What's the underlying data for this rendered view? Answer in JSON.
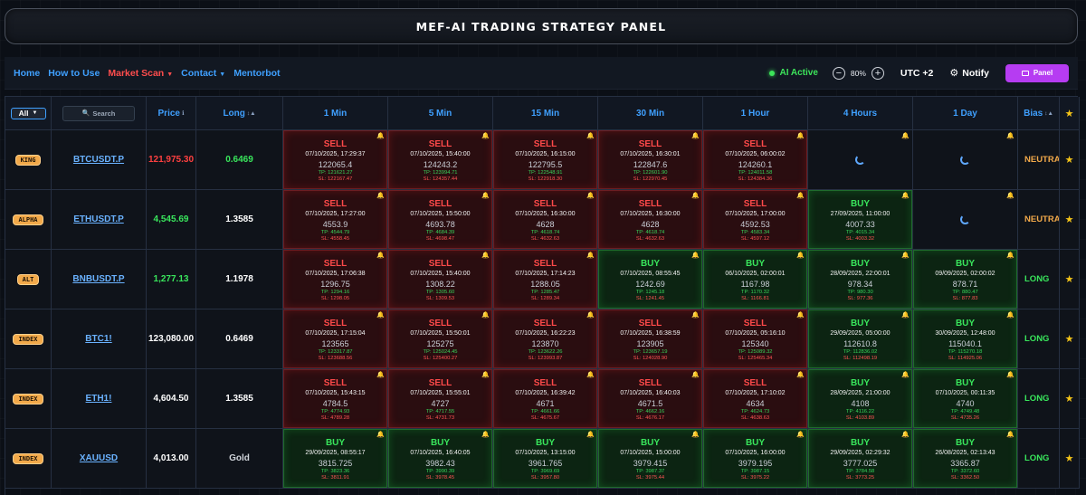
{
  "title": "MEF-AI TRADING STRATEGY PANEL",
  "nav": {
    "links": [
      {
        "label": "Home",
        "active": false,
        "dropdown": false
      },
      {
        "label": "How to Use",
        "active": false,
        "dropdown": false
      },
      {
        "label": "Market Scan",
        "active": true,
        "dropdown": true
      },
      {
        "label": "Contact",
        "active": false,
        "dropdown": true
      },
      {
        "label": "Mentorbot",
        "active": false,
        "dropdown": false
      }
    ],
    "ai_status": "AI Active",
    "zoom": "80%",
    "timezone": "UTC +2",
    "notify_label": "Notify",
    "panel_label": "Panel"
  },
  "filter": {
    "selected": "All",
    "search_placeholder": "Search"
  },
  "columns": {
    "price": "Price",
    "long": "Long",
    "timeframes": [
      "1 Min",
      "5 Min",
      "15 Min",
      "30 Min",
      "1 Hour",
      "4 Hours",
      "1 Day"
    ],
    "bias": "Bias"
  },
  "colors": {
    "sell": "#ff4a4a",
    "buy": "#39e65c",
    "neutral": "#f2a94a",
    "accent": "#3fa0ff"
  },
  "rows": [
    {
      "tag": "KING",
      "symbol": "BTCUSDT.P",
      "price": "121,975.30",
      "price_color": "#ff4040",
      "long": "0.6469",
      "long_color": "#39e65c",
      "bias": "NEUTRAL",
      "bias_color": "#f2a94a",
      "signals": [
        {
          "type": "SELL",
          "time": "07/10/2025, 17:29:37",
          "price": "122065.4",
          "tp": "TP: 121621.27",
          "sl": "SL: 122167.47"
        },
        {
          "type": "SELL",
          "time": "07/10/2025, 15:40:00",
          "price": "124243.2",
          "tp": "TP: 123994.71",
          "sl": "SL: 124357.44"
        },
        {
          "type": "SELL",
          "time": "07/10/2025, 16:15:00",
          "price": "122795.5",
          "tp": "TP: 122548.91",
          "sl": "SL: 122918.30"
        },
        {
          "type": "SELL",
          "time": "07/10/2025, 16:30:01",
          "price": "122847.6",
          "tp": "TP: 122601.90",
          "sl": "SL: 122970.45"
        },
        {
          "type": "SELL",
          "time": "07/10/2025, 06:00:02",
          "price": "124260.1",
          "tp": "TP: 124011.58",
          "sl": "SL: 124384.36"
        },
        {
          "type": "LOADING"
        },
        {
          "type": "LOADING"
        }
      ]
    },
    {
      "tag": "ALPHA",
      "symbol": "ETHUSDT.P",
      "price": "4,545.69",
      "price_color": "#39e65c",
      "long": "1.3585",
      "long_color": "#ffffff",
      "bias": "NEUTRAL",
      "bias_color": "#f2a94a",
      "signals": [
        {
          "type": "SELL",
          "time": "07/10/2025, 17:27:00",
          "price": "4553.9",
          "tp": "TP: 4544.79",
          "sl": "SL: 4558.45"
        },
        {
          "type": "SELL",
          "time": "07/10/2025, 15:50:00",
          "price": "4693.78",
          "tp": "TP: 4684.39",
          "sl": "SL: 4698.47"
        },
        {
          "type": "SELL",
          "time": "07/10/2025, 16:30:00",
          "price": "4628",
          "tp": "TP: 4618.74",
          "sl": "SL: 4632.63"
        },
        {
          "type": "SELL",
          "time": "07/10/2025, 16:30:00",
          "price": "4628",
          "tp": "TP: 4618.74",
          "sl": "SL: 4632.63"
        },
        {
          "type": "SELL",
          "time": "07/10/2025, 17:00:00",
          "price": "4592.53",
          "tp": "TP: 4583.34",
          "sl": "SL: 4597.12"
        },
        {
          "type": "BUY",
          "time": "27/09/2025, 11:00:00",
          "price": "4007.33",
          "tp": "TP: 4015.34",
          "sl": "SL: 4003.32"
        },
        {
          "type": "LOADING"
        }
      ]
    },
    {
      "tag": "ALT",
      "symbol": "BNBUSDT.P",
      "price": "1,277.13",
      "price_color": "#39e65c",
      "long": "1.1978",
      "long_color": "#ffffff",
      "bias": "LONG",
      "bias_color": "#39e65c",
      "signals": [
        {
          "type": "SELL",
          "time": "07/10/2025, 17:06:38",
          "price": "1296.75",
          "tp": "TP: 1294.16",
          "sl": "SL: 1298.05"
        },
        {
          "type": "SELL",
          "time": "07/10/2025, 15:40:00",
          "price": "1308.22",
          "tp": "TP: 1305.60",
          "sl": "SL: 1309.53"
        },
        {
          "type": "SELL",
          "time": "07/10/2025, 17:14:23",
          "price": "1288.05",
          "tp": "TP: 1285.47",
          "sl": "SL: 1289.34"
        },
        {
          "type": "BUY",
          "time": "07/10/2025, 08:55:45",
          "price": "1242.69",
          "tp": "TP: 1245.18",
          "sl": "SL: 1241.45"
        },
        {
          "type": "BUY",
          "time": "06/10/2025, 02:00:01",
          "price": "1167.98",
          "tp": "TP: 1170.32",
          "sl": "SL: 1166.81"
        },
        {
          "type": "BUY",
          "time": "28/09/2025, 22:00:01",
          "price": "978.34",
          "tp": "TP: 980.30",
          "sl": "SL: 977.36"
        },
        {
          "type": "BUY",
          "time": "09/09/2025, 02:00:02",
          "price": "878.71",
          "tp": "TP: 880.47",
          "sl": "SL: 877.83"
        }
      ]
    },
    {
      "tag": "INDEX",
      "symbol": "BTC1!",
      "price": "123,080.00",
      "price_color": "#ffffff",
      "long": "0.6469",
      "long_color": "#ffffff",
      "bias": "LONG",
      "bias_color": "#39e65c",
      "signals": [
        {
          "type": "SELL",
          "time": "07/10/2025, 17:15:04",
          "price": "123565",
          "tp": "TP: 123317.87",
          "sl": "SL: 123688.56"
        },
        {
          "type": "SELL",
          "time": "07/10/2025, 15:50:01",
          "price": "125275",
          "tp": "TP: 125024.45",
          "sl": "SL: 125400.27"
        },
        {
          "type": "SELL",
          "time": "07/10/2025, 16:22:23",
          "price": "123870",
          "tp": "TP: 123622.26",
          "sl": "SL: 123993.87"
        },
        {
          "type": "SELL",
          "time": "07/10/2025, 16:38:59",
          "price": "123905",
          "tp": "TP: 123657.19",
          "sl": "SL: 124028.90"
        },
        {
          "type": "SELL",
          "time": "07/10/2025, 05:16:10",
          "price": "125340",
          "tp": "TP: 125089.32",
          "sl": "SL: 125465.34"
        },
        {
          "type": "BUY",
          "time": "29/09/2025, 05:00:00",
          "price": "112610.8",
          "tp": "TP: 112836.02",
          "sl": "SL: 112498.19"
        },
        {
          "type": "BUY",
          "time": "30/09/2025, 12:48:00",
          "price": "115040.1",
          "tp": "TP: 115270.18",
          "sl": "SL: 114925.06"
        }
      ]
    },
    {
      "tag": "INDEX",
      "symbol": "ETH1!",
      "price": "4,604.50",
      "price_color": "#ffffff",
      "long": "1.3585",
      "long_color": "#ffffff",
      "bias": "LONG",
      "bias_color": "#39e65c",
      "signals": [
        {
          "type": "SELL",
          "time": "07/10/2025, 15:43:15",
          "price": "4784.5",
          "tp": "TP: 4774.93",
          "sl": "SL: 4789.28"
        },
        {
          "type": "SELL",
          "time": "07/10/2025, 15:55:01",
          "price": "4727",
          "tp": "TP: 4717.55",
          "sl": "SL: 4731.73"
        },
        {
          "type": "SELL",
          "time": "07/10/2025, 16:39:42",
          "price": "4671",
          "tp": "TP: 4661.66",
          "sl": "SL: 4675.67"
        },
        {
          "type": "SELL",
          "time": "07/10/2025, 16:40:03",
          "price": "4671.5",
          "tp": "TP: 4662.16",
          "sl": "SL: 4676.17"
        },
        {
          "type": "SELL",
          "time": "07/10/2025, 17:10:02",
          "price": "4634",
          "tp": "TP: 4624.73",
          "sl": "SL: 4638.63"
        },
        {
          "type": "BUY",
          "time": "28/09/2025, 21:00:00",
          "price": "4108",
          "tp": "TP: 4116.22",
          "sl": "SL: 4103.89"
        },
        {
          "type": "BUY",
          "time": "07/10/2025, 00:11:35",
          "price": "4740",
          "tp": "TP: 4749.48",
          "sl": "SL: 4735.26"
        }
      ]
    },
    {
      "tag": "INDEX",
      "symbol": "XAUUSD",
      "price": "4,013.00",
      "price_color": "#ffffff",
      "long": "Gold",
      "long_color": "#d0d4da",
      "bias": "LONG",
      "bias_color": "#39e65c",
      "signals": [
        {
          "type": "BUY",
          "time": "29/09/2025, 08:55:17",
          "price": "3815.725",
          "tp": "TP: 3823.36",
          "sl": "SL: 3811.91"
        },
        {
          "type": "BUY",
          "time": "07/10/2025, 16:40:05",
          "price": "3982.43",
          "tp": "TP: 3990.39",
          "sl": "SL: 3978.45"
        },
        {
          "type": "BUY",
          "time": "07/10/2025, 13:15:00",
          "price": "3961.765",
          "tp": "TP: 3969.69",
          "sl": "SL: 3957.80"
        },
        {
          "type": "BUY",
          "time": "07/10/2025, 15:00:00",
          "price": "3979.415",
          "tp": "TP: 3987.37",
          "sl": "SL: 3975.44"
        },
        {
          "type": "BUY",
          "time": "07/10/2025, 16:00:00",
          "price": "3979.195",
          "tp": "TP: 3987.15",
          "sl": "SL: 3975.22"
        },
        {
          "type": "BUY",
          "time": "29/09/2025, 02:29:32",
          "price": "3777.025",
          "tp": "TP: 3784.58",
          "sl": "SL: 3773.25"
        },
        {
          "type": "BUY",
          "time": "26/08/2025, 02:13:43",
          "price": "3365.87",
          "tp": "TP: 3372.60",
          "sl": "SL: 3362.50"
        }
      ]
    }
  ]
}
